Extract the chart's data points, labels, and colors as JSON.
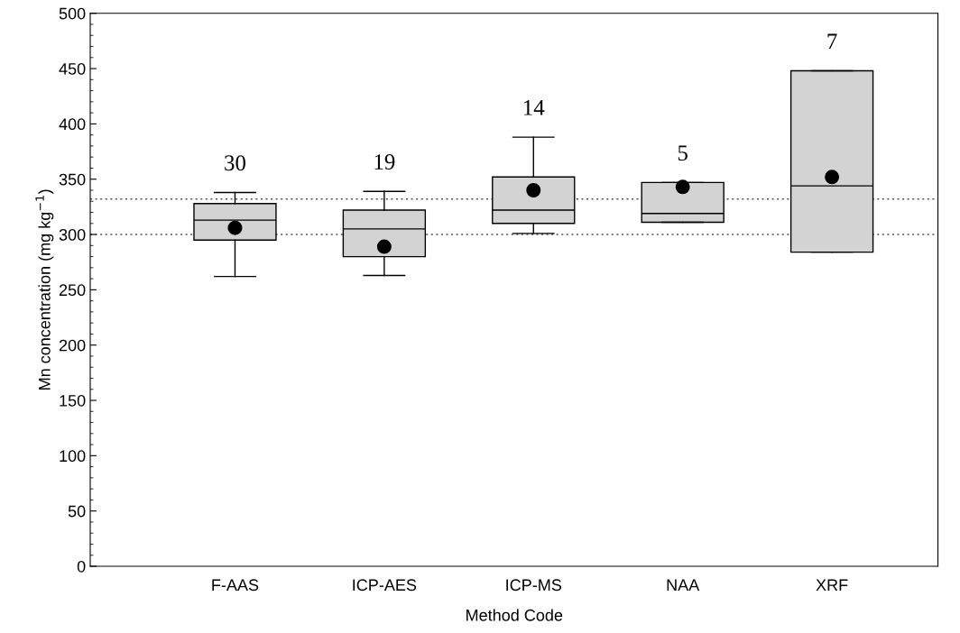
{
  "chart_data": {
    "type": "box",
    "xlabel": "Method Code",
    "ylabel": "Mn concentration (mg kg$^{−1}$)",
    "categories": [
      "F-AAS",
      "ICP-AES",
      "ICP-MS",
      "NAA",
      "XRF"
    ],
    "ylim": [
      0,
      500
    ],
    "yticks": [
      0,
      50,
      100,
      150,
      200,
      250,
      300,
      350,
      400,
      450,
      500
    ],
    "grid": false,
    "legend": false,
    "color": "#d3d3d3",
    "boxes": [
      {
        "low": 262,
        "q1": 295,
        "median": 313,
        "q3": 328,
        "high": 338,
        "mean": 306
      },
      {
        "low": 263,
        "q1": 280,
        "median": 305,
        "q3": 322,
        "high": 339,
        "mean": 289
      },
      {
        "low": 301,
        "q1": 310,
        "median": 322,
        "q3": 352,
        "high": 388,
        "mean": 340
      },
      {
        "low": 311,
        "q1": 311,
        "median": 319,
        "q3": 347,
        "high": 347,
        "mean": 343
      },
      {
        "low": 284,
        "q1": 284,
        "median": 344,
        "q3": 448,
        "high": 448,
        "mean": 352
      }
    ],
    "ref_lines": [
      {
        "axis": "y",
        "value": 332,
        "color": "#555555",
        "line_style": "dotted"
      },
      {
        "axis": "y",
        "value": 300,
        "color": "#555555",
        "line_style": "dotted"
      }
    ],
    "annotations": [
      "30",
      "19",
      "14",
      "5",
      "7"
    ]
  }
}
